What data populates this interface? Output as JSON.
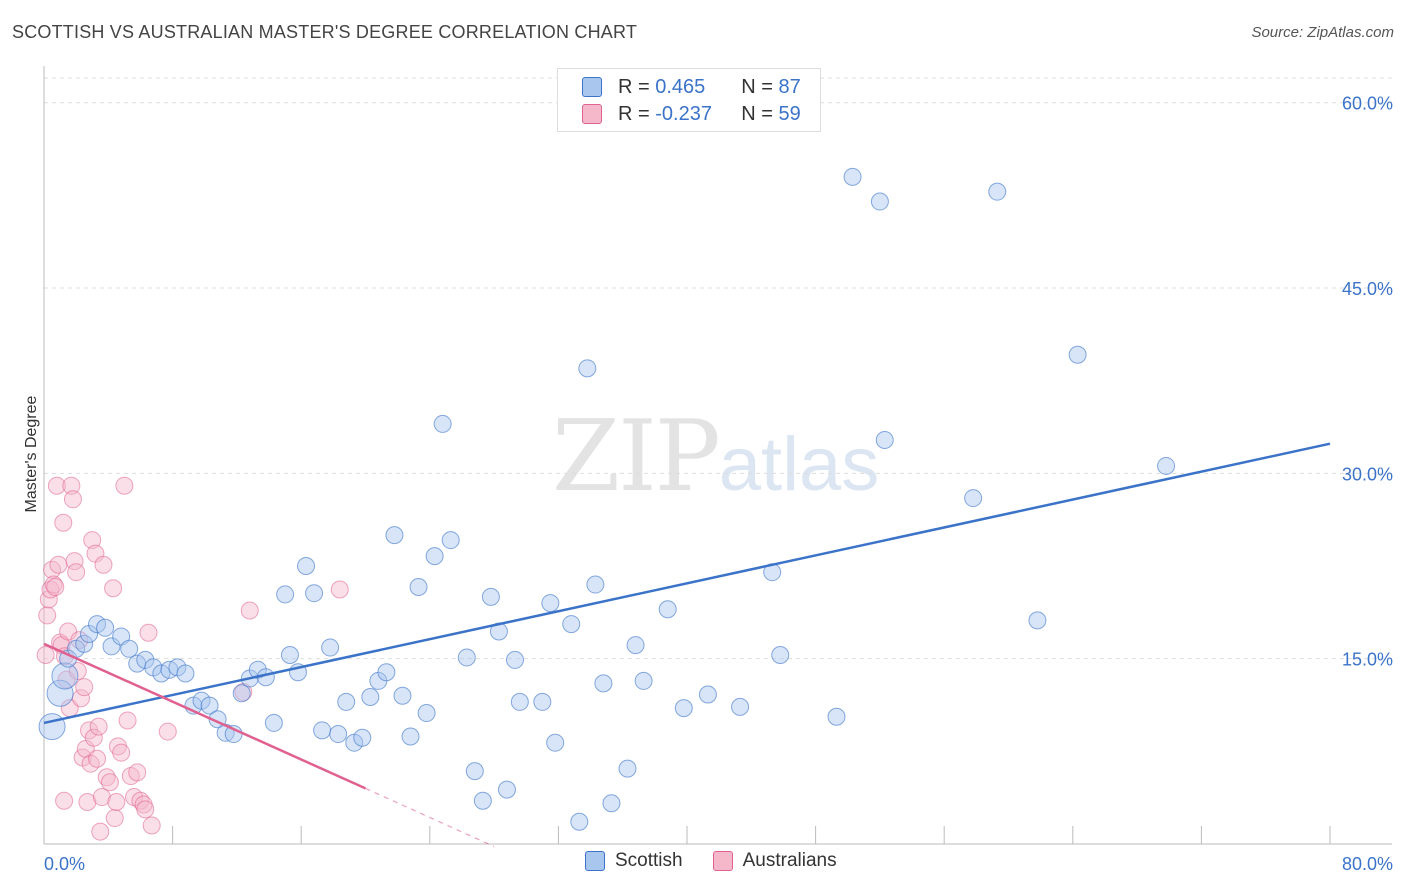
{
  "header": {
    "title": "SCOTTISH VS AUSTRALIAN MASTER'S DEGREE CORRELATION CHART",
    "source": "Source: ZipAtlas.com"
  },
  "watermark": {
    "zip": "ZIP",
    "atlas": "atlas"
  },
  "legend": {
    "rows": [
      {
        "r_label": "R = ",
        "r_value": "0.465",
        "n_label": "N = ",
        "n_value": "87",
        "color": "#a9c6ef"
      },
      {
        "r_label": "R = ",
        "r_value": "-0.237",
        "n_label": "N = ",
        "n_value": "59",
        "color": "#f5b8cb"
      }
    ]
  },
  "bottom_legend": {
    "scottish": "Scottish",
    "australians": "Australians"
  },
  "chart_data": {
    "type": "scatter",
    "title": "SCOTTISH VS AUSTRALIAN MASTER'S DEGREE CORRELATION CHART",
    "xlabel": "",
    "ylabel": "Master's Degree",
    "xlim": [
      0,
      80
    ],
    "ylim": [
      0,
      62
    ],
    "x_tick_labels": [
      "0.0%",
      "80.0%"
    ],
    "y_tick_labels": [
      "15.0%",
      "30.0%",
      "45.0%",
      "60.0%"
    ],
    "y_ticks": [
      15,
      30,
      45,
      60
    ],
    "colors": {
      "scottish": "#3b73c9",
      "scottish_fill": "#a9c6ef",
      "australians": "#e0608f",
      "australians_fill": "#f5b8cb",
      "tick": "#3b73c9"
    },
    "series": [
      {
        "name": "Scottish",
        "r": 0.465,
        "n": 87,
        "trend": {
          "x": [
            0,
            80
          ],
          "y": [
            9.8,
            32.4
          ]
        },
        "points": [
          [
            0.5,
            9.5
          ],
          [
            1.0,
            12.2
          ],
          [
            1.3,
            13.6
          ],
          [
            1.5,
            15.0
          ],
          [
            2.0,
            15.8
          ],
          [
            2.5,
            16.2
          ],
          [
            2.8,
            17.0
          ],
          [
            3.3,
            17.8
          ],
          [
            3.8,
            17.5
          ],
          [
            4.2,
            16.0
          ],
          [
            4.8,
            16.8
          ],
          [
            5.3,
            15.8
          ],
          [
            5.8,
            14.6
          ],
          [
            6.3,
            14.9
          ],
          [
            6.8,
            14.3
          ],
          [
            7.3,
            13.8
          ],
          [
            7.8,
            14.1
          ],
          [
            8.3,
            14.3
          ],
          [
            8.8,
            13.8
          ],
          [
            9.3,
            11.2
          ],
          [
            9.8,
            11.6
          ],
          [
            10.3,
            11.2
          ],
          [
            10.8,
            10.1
          ],
          [
            11.3,
            9.0
          ],
          [
            11.8,
            8.9
          ],
          [
            12.3,
            12.2
          ],
          [
            12.8,
            13.4
          ],
          [
            13.3,
            14.1
          ],
          [
            13.8,
            13.5
          ],
          [
            14.3,
            9.8
          ],
          [
            15.0,
            20.2
          ],
          [
            15.3,
            15.3
          ],
          [
            15.8,
            13.9
          ],
          [
            16.3,
            22.5
          ],
          [
            16.8,
            20.3
          ],
          [
            17.3,
            9.2
          ],
          [
            17.8,
            15.9
          ],
          [
            18.3,
            8.9
          ],
          [
            18.8,
            11.5
          ],
          [
            19.3,
            8.2
          ],
          [
            19.8,
            8.6
          ],
          [
            20.3,
            11.9
          ],
          [
            20.8,
            13.2
          ],
          [
            21.3,
            13.9
          ],
          [
            21.8,
            25.0
          ],
          [
            22.3,
            12.0
          ],
          [
            22.8,
            8.7
          ],
          [
            23.3,
            20.8
          ],
          [
            23.8,
            10.6
          ],
          [
            24.3,
            23.3
          ],
          [
            24.8,
            34.0
          ],
          [
            25.3,
            24.6
          ],
          [
            26.3,
            15.1
          ],
          [
            26.8,
            5.9
          ],
          [
            27.3,
            3.5
          ],
          [
            27.8,
            20.0
          ],
          [
            28.3,
            17.2
          ],
          [
            28.8,
            4.4
          ],
          [
            29.3,
            14.9
          ],
          [
            29.6,
            11.5
          ],
          [
            31.0,
            11.5
          ],
          [
            31.5,
            19.5
          ],
          [
            31.8,
            8.2
          ],
          [
            32.8,
            17.8
          ],
          [
            33.3,
            1.8
          ],
          [
            33.8,
            38.5
          ],
          [
            34.3,
            21.0
          ],
          [
            34.8,
            13.0
          ],
          [
            35.3,
            3.3
          ],
          [
            36.3,
            6.1
          ],
          [
            36.8,
            16.1
          ],
          [
            37.3,
            13.2
          ],
          [
            38.8,
            19.0
          ],
          [
            39.8,
            11.0
          ],
          [
            41.3,
            12.1
          ],
          [
            43.3,
            11.1
          ],
          [
            45.3,
            22.0
          ],
          [
            45.8,
            15.3
          ],
          [
            49.3,
            10.3
          ],
          [
            50.3,
            54.0
          ],
          [
            52.0,
            52.0
          ],
          [
            52.3,
            32.7
          ],
          [
            57.8,
            28.0
          ],
          [
            59.3,
            52.8
          ],
          [
            61.8,
            18.1
          ],
          [
            64.3,
            39.6
          ],
          [
            69.8,
            30.6
          ]
        ]
      },
      {
        "name": "Australians",
        "r": -0.237,
        "n": 59,
        "trend": {
          "x": [
            0,
            20
          ],
          "y": [
            16.2,
            4.5
          ]
        },
        "trend_extension": {
          "x": [
            20,
            28
          ],
          "y": [
            4.5,
            -0.2
          ]
        },
        "points": [
          [
            0.1,
            15.3
          ],
          [
            0.2,
            18.5
          ],
          [
            0.3,
            19.8
          ],
          [
            0.4,
            20.6
          ],
          [
            0.5,
            22.2
          ],
          [
            0.6,
            21.0
          ],
          [
            0.7,
            20.8
          ],
          [
            0.8,
            29.0
          ],
          [
            0.9,
            22.6
          ],
          [
            1.0,
            16.3
          ],
          [
            1.1,
            16.1
          ],
          [
            1.2,
            26.0
          ],
          [
            1.3,
            15.2
          ],
          [
            1.4,
            13.3
          ],
          [
            1.5,
            17.2
          ],
          [
            1.6,
            11.0
          ],
          [
            1.7,
            29.0
          ],
          [
            1.8,
            27.9
          ],
          [
            1.9,
            22.9
          ],
          [
            2.0,
            22.0
          ],
          [
            2.1,
            14.0
          ],
          [
            2.2,
            16.5
          ],
          [
            2.3,
            11.8
          ],
          [
            2.4,
            7.0
          ],
          [
            2.5,
            12.7
          ],
          [
            2.6,
            7.7
          ],
          [
            2.7,
            3.4
          ],
          [
            2.8,
            9.2
          ],
          [
            2.9,
            6.5
          ],
          [
            3.0,
            24.6
          ],
          [
            3.1,
            8.6
          ],
          [
            3.2,
            23.5
          ],
          [
            3.3,
            6.9
          ],
          [
            3.4,
            9.5
          ],
          [
            3.5,
            1.0
          ],
          [
            3.6,
            3.8
          ],
          [
            3.7,
            22.6
          ],
          [
            3.9,
            5.4
          ],
          [
            4.1,
            5.0
          ],
          [
            4.3,
            20.7
          ],
          [
            4.4,
            2.1
          ],
          [
            4.5,
            3.4
          ],
          [
            4.6,
            7.9
          ],
          [
            4.8,
            7.4
          ],
          [
            5.0,
            29.0
          ],
          [
            5.2,
            10.0
          ],
          [
            5.4,
            5.5
          ],
          [
            5.6,
            3.8
          ],
          [
            5.8,
            5.8
          ],
          [
            6.0,
            3.5
          ],
          [
            6.2,
            3.2
          ],
          [
            6.3,
            2.8
          ],
          [
            6.5,
            17.1
          ],
          [
            6.7,
            1.5
          ],
          [
            7.7,
            9.1
          ],
          [
            12.4,
            12.3
          ],
          [
            12.8,
            18.9
          ],
          [
            18.4,
            20.6
          ],
          [
            1.25,
            3.5
          ]
        ]
      }
    ]
  }
}
